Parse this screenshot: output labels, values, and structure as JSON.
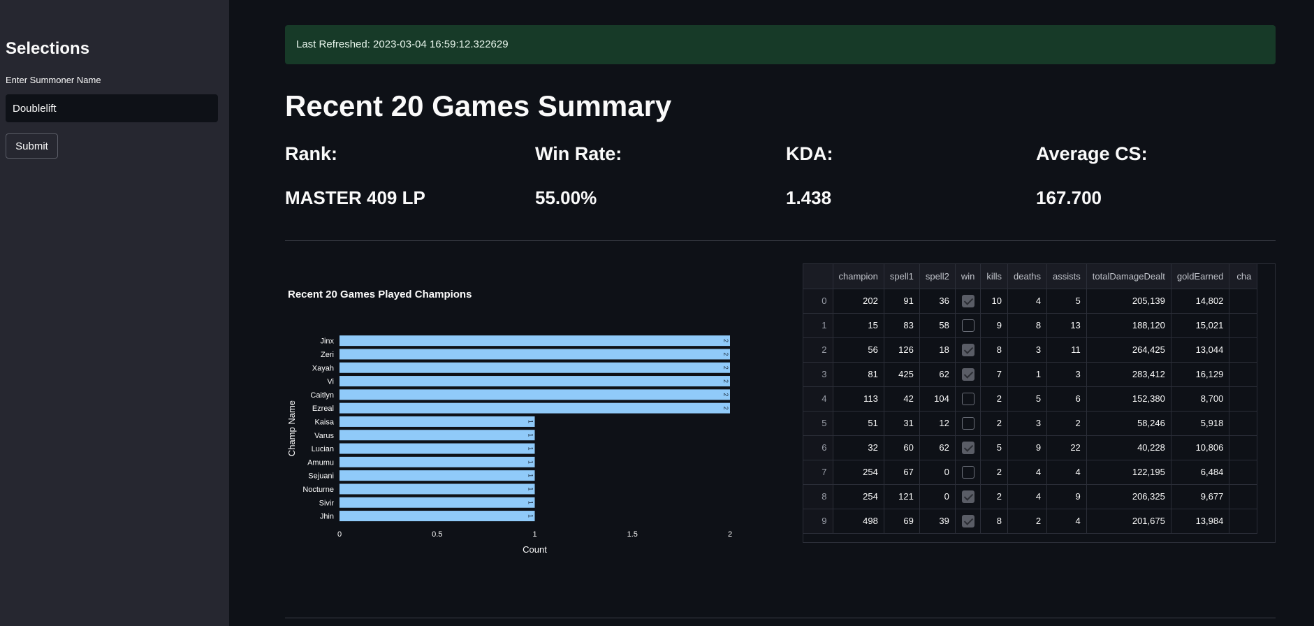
{
  "sidebar": {
    "title": "Selections",
    "input_label": "Enter Summoner Name",
    "input_value": "Doublelift",
    "submit_label": "Submit"
  },
  "alert": {
    "text": "Last Refreshed: 2023-03-04 16:59:12.322629"
  },
  "page_title": "Recent 20 Games Summary",
  "metrics": [
    {
      "label": "Rank:",
      "value": "MASTER 409 LP"
    },
    {
      "label": "Win Rate:",
      "value": "55.00%"
    },
    {
      "label": "KDA:",
      "value": "1.438"
    },
    {
      "label": "Average CS:",
      "value": "167.700"
    }
  ],
  "chart_data": {
    "type": "bar",
    "orientation": "horizontal",
    "title": "Recent 20 Games Played Champions",
    "xlabel": "Count",
    "ylabel": "Champ Name",
    "categories": [
      "Jinx",
      "Zeri",
      "Xayah",
      "Vi",
      "Caitlyn",
      "Ezreal",
      "Kaisa",
      "Varus",
      "Lucian",
      "Amumu",
      "Sejuani",
      "Nocturne",
      "Sivir",
      "Jhin"
    ],
    "values": [
      2,
      2,
      2,
      2,
      2,
      2,
      1,
      1,
      1,
      1,
      1,
      1,
      1,
      1
    ],
    "xlim": [
      0,
      2
    ],
    "xticks": [
      "0",
      "0.5",
      "1",
      "1.5",
      "2"
    ],
    "bar_color": "#90caf9"
  },
  "table": {
    "columns": [
      "",
      "champion",
      "spell1",
      "spell2",
      "win",
      "kills",
      "deaths",
      "assists",
      "totalDamageDealt",
      "goldEarned",
      "cha"
    ],
    "rows": [
      [
        "0",
        "202",
        "91",
        "36",
        true,
        "10",
        "4",
        "5",
        "205,139",
        "14,802"
      ],
      [
        "1",
        "15",
        "83",
        "58",
        false,
        "9",
        "8",
        "13",
        "188,120",
        "15,021"
      ],
      [
        "2",
        "56",
        "126",
        "18",
        true,
        "8",
        "3",
        "11",
        "264,425",
        "13,044"
      ],
      [
        "3",
        "81",
        "425",
        "62",
        true,
        "7",
        "1",
        "3",
        "283,412",
        "16,129"
      ],
      [
        "4",
        "113",
        "42",
        "104",
        false,
        "2",
        "5",
        "6",
        "152,380",
        "8,700"
      ],
      [
        "5",
        "51",
        "31",
        "12",
        false,
        "2",
        "3",
        "2",
        "58,246",
        "5,918"
      ],
      [
        "6",
        "32",
        "60",
        "62",
        true,
        "5",
        "9",
        "22",
        "40,228",
        "10,806"
      ],
      [
        "7",
        "254",
        "67",
        "0",
        false,
        "2",
        "4",
        "4",
        "122,195",
        "6,484"
      ],
      [
        "8",
        "254",
        "121",
        "0",
        true,
        "2",
        "4",
        "9",
        "206,325",
        "9,677"
      ],
      [
        "9",
        "498",
        "69",
        "39",
        true,
        "8",
        "2",
        "4",
        "201,675",
        "13,984"
      ]
    ]
  }
}
